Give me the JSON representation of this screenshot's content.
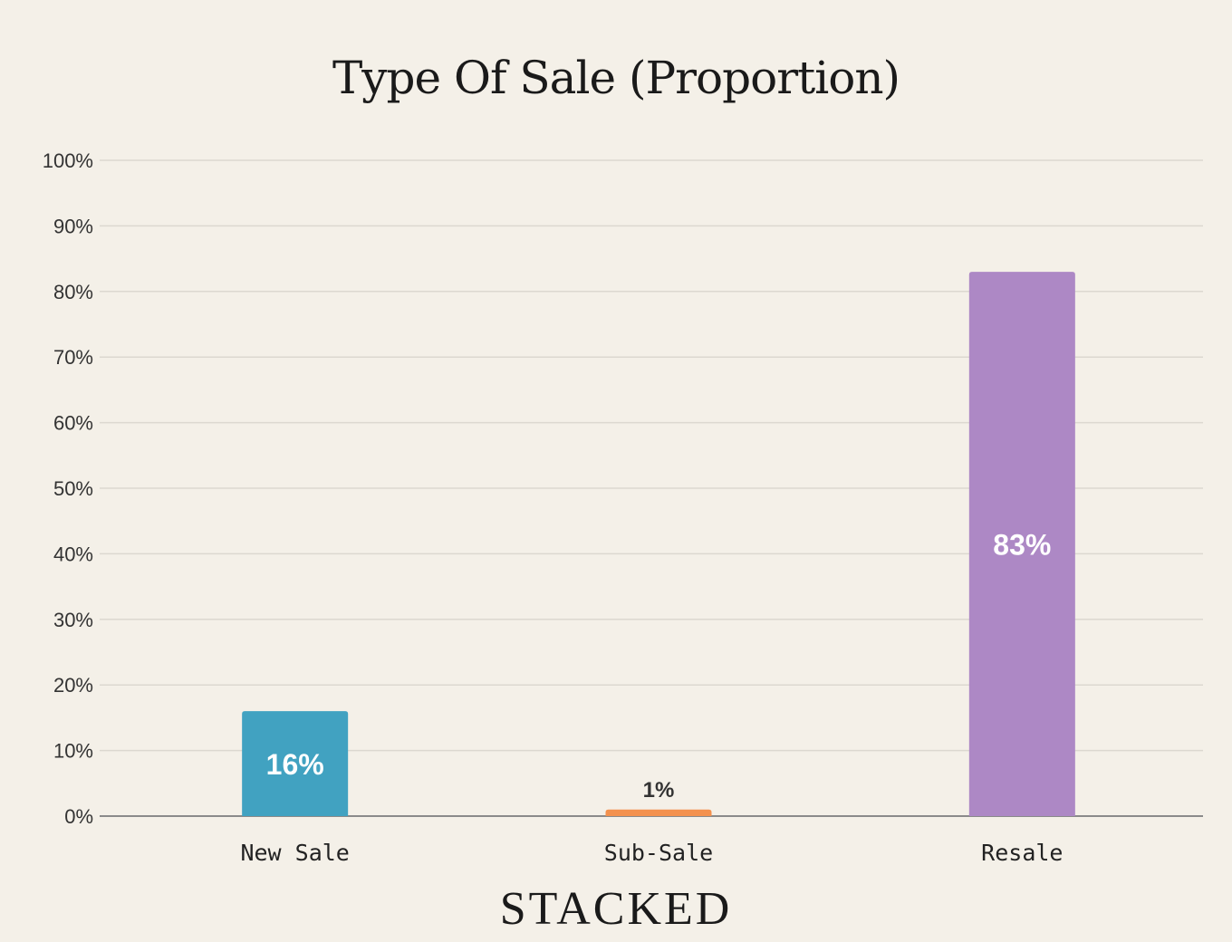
{
  "chart_data": {
    "type": "bar",
    "title": "Type Of Sale (Proportion)",
    "xlabel": "",
    "ylabel": "",
    "categories": [
      "New Sale",
      "Sub-Sale",
      "Resale"
    ],
    "values": [
      16,
      1,
      83
    ],
    "data_labels": [
      "16%",
      "1%",
      "83%"
    ],
    "colors": [
      "#41a2c1",
      "#f3914e",
      "#ad88c5"
    ],
    "ylim": [
      0,
      100
    ],
    "yticks": [
      0,
      10,
      20,
      30,
      40,
      50,
      60,
      70,
      80,
      90,
      100
    ],
    "ytick_labels": [
      "0%",
      "10%",
      "20%",
      "30%",
      "40%",
      "50%",
      "60%",
      "70%",
      "80%",
      "90%",
      "100%"
    ],
    "grid": true,
    "legend": "none"
  },
  "brand": {
    "logo_text": "STACKED"
  }
}
